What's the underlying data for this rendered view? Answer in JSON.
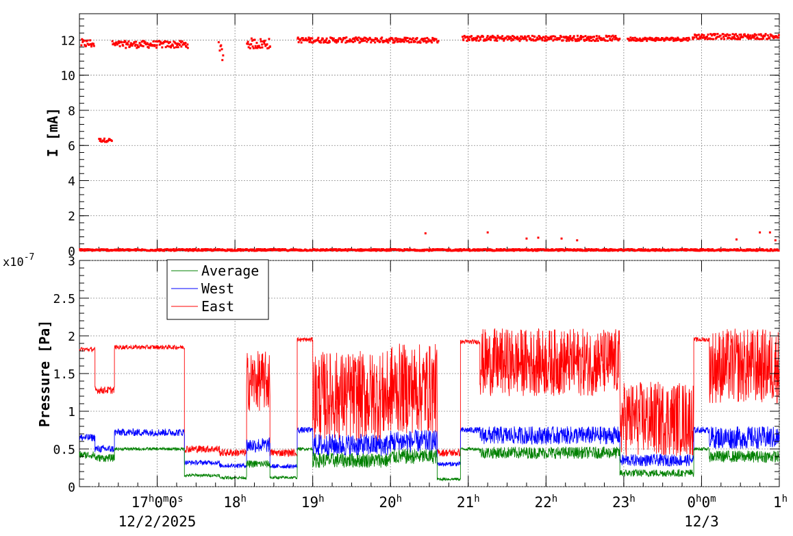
{
  "chart_data": [
    {
      "type": "scatter",
      "ylabel": "I [mA]",
      "ylim": [
        0,
        13.5
      ],
      "xlim": [
        16.0,
        25.0
      ],
      "grid": true,
      "yticks": [
        0,
        2,
        4,
        6,
        8,
        10,
        12
      ],
      "ytick_labels": [
        "0",
        "2",
        "4",
        "6",
        "8",
        "10",
        "12"
      ],
      "series": [
        {
          "color": "#ff0000",
          "segments": [
            {
              "x0": 16.02,
              "x1": 16.19,
              "y": 11.8,
              "spread": 0.25
            },
            {
              "x0": 16.25,
              "x1": 16.42,
              "y": 6.3,
              "spread": 0.1
            },
            {
              "x0": 16.42,
              "x1": 17.4,
              "y": 11.75,
              "spread": 0.2
            },
            {
              "x0": 17.79,
              "x1": 17.85,
              "y": 11.3,
              "spread": 0.6
            },
            {
              "x0": 18.15,
              "x1": 18.46,
              "y": 11.8,
              "spread": 0.3
            },
            {
              "x0": 18.8,
              "x1": 20.62,
              "y": 12.0,
              "spread": 0.15
            },
            {
              "x0": 20.92,
              "x1": 22.95,
              "y": 12.1,
              "spread": 0.15
            },
            {
              "x0": 23.05,
              "x1": 23.85,
              "y": 12.05,
              "spread": 0.1
            },
            {
              "x0": 23.88,
              "x1": 25.0,
              "y": 12.2,
              "spread": 0.15
            },
            {
              "x0": 16.0,
              "x1": 25.0,
              "y": 0.05,
              "spread": 0.05
            }
          ],
          "outliers": [
            [
              20.45,
              1.0
            ],
            [
              21.25,
              1.05
            ],
            [
              21.75,
              0.7
            ],
            [
              21.9,
              0.75
            ],
            [
              22.2,
              0.7
            ],
            [
              22.4,
              0.6
            ],
            [
              24.45,
              0.65
            ],
            [
              24.75,
              1.05
            ],
            [
              24.88,
              1.05
            ],
            [
              24.95,
              0.6
            ]
          ]
        }
      ]
    },
    {
      "type": "line",
      "ylabel": "Pressure [Pa]",
      "yscale_label": "x10",
      "yscale_exp": "-7",
      "ylim": [
        0,
        3.0
      ],
      "xlim": [
        16.0,
        25.0
      ],
      "grid": true,
      "legend_position": "top-left",
      "yticks": [
        0,
        0.5,
        1,
        1.5,
        2,
        2.5,
        3
      ],
      "ytick_labels": [
        "0",
        "0.5",
        "1",
        "1.5",
        "2",
        "2.5",
        "3"
      ],
      "xticks": [
        17,
        18,
        19,
        20,
        21,
        22,
        23,
        24,
        25
      ],
      "xtick_labels": [
        {
          "text": "17",
          "sup": "h",
          "text2": "0",
          "sup2": "m",
          "text3": "0",
          "sup3": "s"
        },
        {
          "text": "18",
          "sup": "h"
        },
        {
          "text": "19",
          "sup": "h"
        },
        {
          "text": "20",
          "sup": "h"
        },
        {
          "text": "21",
          "sup": "h"
        },
        {
          "text": "22",
          "sup": "h"
        },
        {
          "text": "23",
          "sup": "h"
        },
        {
          "text": "0",
          "sup": "h",
          "text2": "0",
          "sup2": "m"
        },
        {
          "text": "1",
          "sup": "h"
        }
      ],
      "date_labels": [
        {
          "x": 17,
          "text": "12/2/2025"
        },
        {
          "x": 24,
          "text": "12/3"
        }
      ],
      "series": [
        {
          "name": "Average",
          "color": "#008000",
          "segments": [
            {
              "x0": 16.0,
              "x1": 16.2,
              "y": 0.42,
              "noise": 0.05
            },
            {
              "x0": 16.2,
              "x1": 16.45,
              "y": 0.38,
              "noise": 0.05
            },
            {
              "x0": 16.45,
              "x1": 17.35,
              "y": 0.5,
              "noise": 0.02
            },
            {
              "x0": 17.35,
              "x1": 17.8,
              "y": 0.15,
              "noise": 0.02
            },
            {
              "x0": 17.8,
              "x1": 18.15,
              "y": 0.12,
              "noise": 0.02
            },
            {
              "x0": 18.15,
              "x1": 18.45,
              "y": 0.3,
              "noise": 0.05
            },
            {
              "x0": 18.45,
              "x1": 18.8,
              "y": 0.12,
              "noise": 0.02
            },
            {
              "x0": 18.8,
              "x1": 19.0,
              "y": 0.5,
              "noise": 0.02
            },
            {
              "x0": 19.0,
              "x1": 20.0,
              "y": 0.35,
              "noise": 0.1
            },
            {
              "x0": 20.0,
              "x1": 20.6,
              "y": 0.4,
              "noise": 0.1
            },
            {
              "x0": 20.6,
              "x1": 20.9,
              "y": 0.1,
              "noise": 0.02
            },
            {
              "x0": 20.9,
              "x1": 21.15,
              "y": 0.5,
              "noise": 0.02
            },
            {
              "x0": 21.15,
              "x1": 22.95,
              "y": 0.45,
              "noise": 0.08
            },
            {
              "x0": 22.95,
              "x1": 23.9,
              "y": 0.18,
              "noise": 0.05
            },
            {
              "x0": 23.9,
              "x1": 24.1,
              "y": 0.5,
              "noise": 0.02
            },
            {
              "x0": 24.1,
              "x1": 25.0,
              "y": 0.4,
              "noise": 0.08
            }
          ]
        },
        {
          "name": "West",
          "color": "#0000ff",
          "segments": [
            {
              "x0": 16.0,
              "x1": 16.2,
              "y": 0.65,
              "noise": 0.05
            },
            {
              "x0": 16.2,
              "x1": 16.45,
              "y": 0.5,
              "noise": 0.05
            },
            {
              "x0": 16.45,
              "x1": 17.35,
              "y": 0.72,
              "noise": 0.05
            },
            {
              "x0": 17.35,
              "x1": 17.8,
              "y": 0.32,
              "noise": 0.03
            },
            {
              "x0": 17.8,
              "x1": 18.15,
              "y": 0.28,
              "noise": 0.03
            },
            {
              "x0": 18.15,
              "x1": 18.45,
              "y": 0.55,
              "noise": 0.1
            },
            {
              "x0": 18.45,
              "x1": 18.8,
              "y": 0.27,
              "noise": 0.03
            },
            {
              "x0": 18.8,
              "x1": 19.0,
              "y": 0.75,
              "noise": 0.04
            },
            {
              "x0": 19.0,
              "x1": 20.0,
              "y": 0.55,
              "noise": 0.15
            },
            {
              "x0": 20.0,
              "x1": 20.6,
              "y": 0.6,
              "noise": 0.15
            },
            {
              "x0": 20.6,
              "x1": 20.9,
              "y": 0.3,
              "noise": 0.03
            },
            {
              "x0": 20.9,
              "x1": 21.15,
              "y": 0.75,
              "noise": 0.04
            },
            {
              "x0": 21.15,
              "x1": 22.95,
              "y": 0.68,
              "noise": 0.12
            },
            {
              "x0": 22.95,
              "x1": 23.9,
              "y": 0.35,
              "noise": 0.08
            },
            {
              "x0": 23.9,
              "x1": 24.1,
              "y": 0.75,
              "noise": 0.04
            },
            {
              "x0": 24.1,
              "x1": 25.0,
              "y": 0.65,
              "noise": 0.15
            }
          ]
        },
        {
          "name": "East",
          "color": "#ff0000",
          "segments": [
            {
              "x0": 16.0,
              "x1": 16.2,
              "y": 1.82,
              "noise": 0.03
            },
            {
              "x0": 16.2,
              "x1": 16.45,
              "y": 1.28,
              "noise": 0.05
            },
            {
              "x0": 16.45,
              "x1": 17.35,
              "y": 1.85,
              "noise": 0.03
            },
            {
              "x0": 17.35,
              "x1": 17.8,
              "y": 0.5,
              "noise": 0.05
            },
            {
              "x0": 17.8,
              "x1": 18.15,
              "y": 0.45,
              "noise": 0.05
            },
            {
              "x0": 18.15,
              "x1": 18.45,
              "y": 1.4,
              "noise": 0.4
            },
            {
              "x0": 18.45,
              "x1": 18.8,
              "y": 0.45,
              "noise": 0.05
            },
            {
              "x0": 18.8,
              "x1": 19.0,
              "y": 1.95,
              "noise": 0.03
            },
            {
              "x0": 19.0,
              "x1": 20.0,
              "y": 1.2,
              "noise": 0.6
            },
            {
              "x0": 20.0,
              "x1": 20.6,
              "y": 1.3,
              "noise": 0.6
            },
            {
              "x0": 20.6,
              "x1": 20.9,
              "y": 0.45,
              "noise": 0.05
            },
            {
              "x0": 20.9,
              "x1": 21.15,
              "y": 1.92,
              "noise": 0.03
            },
            {
              "x0": 21.15,
              "x1": 22.95,
              "y": 1.65,
              "noise": 0.45
            },
            {
              "x0": 22.95,
              "x1": 23.9,
              "y": 0.9,
              "noise": 0.5
            },
            {
              "x0": 23.9,
              "x1": 24.1,
              "y": 1.95,
              "noise": 0.03
            },
            {
              "x0": 24.1,
              "x1": 25.0,
              "y": 1.6,
              "noise": 0.5
            }
          ]
        }
      ]
    }
  ]
}
